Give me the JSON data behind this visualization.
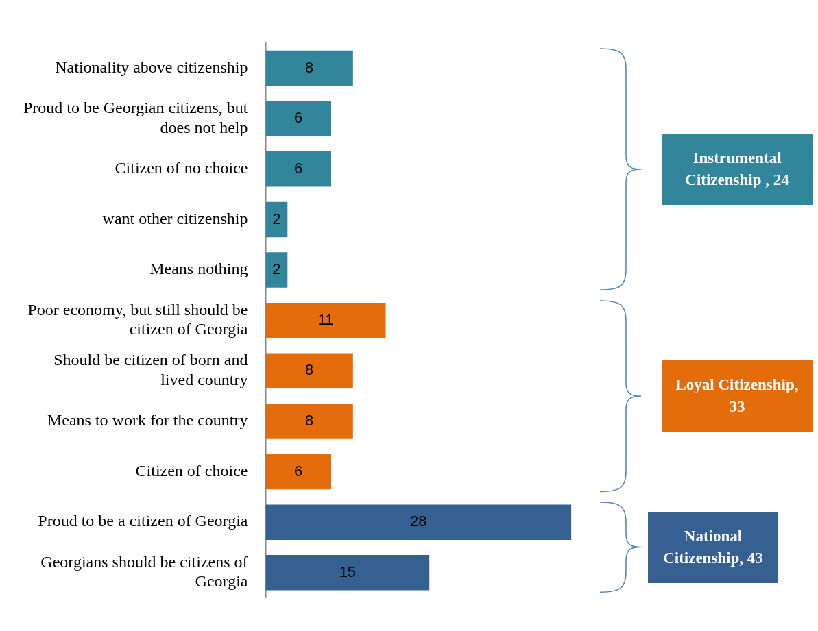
{
  "chart_data": {
    "type": "bar",
    "orientation": "horizontal",
    "categories": [
      "Nationality above citizenship",
      "Proud to be Georgian citizens, but does not help",
      "Citizen of no choice",
      "want other citizenship",
      "Means nothing",
      "Poor economy, but still should be citizen of Georgia",
      "Should be citizen of born and lived country",
      "Means to work for the country",
      "Citizen of choice",
      "Proud to be a citizen of Georgia",
      "Georgians should be citizens of Georgia"
    ],
    "values": [
      8,
      6,
      6,
      2,
      2,
      11,
      8,
      8,
      6,
      28,
      15
    ],
    "colors": [
      "#31869b",
      "#31869b",
      "#31869b",
      "#31869b",
      "#31869b",
      "#e46c0a",
      "#e46c0a",
      "#e46c0a",
      "#e46c0a",
      "#376092",
      "#376092"
    ],
    "data_labels": true,
    "annotations": [
      "Instrumental Citizenship , 24",
      "Loyal Citizenship, 33",
      "National Citizenship, 43"
    ]
  }
}
